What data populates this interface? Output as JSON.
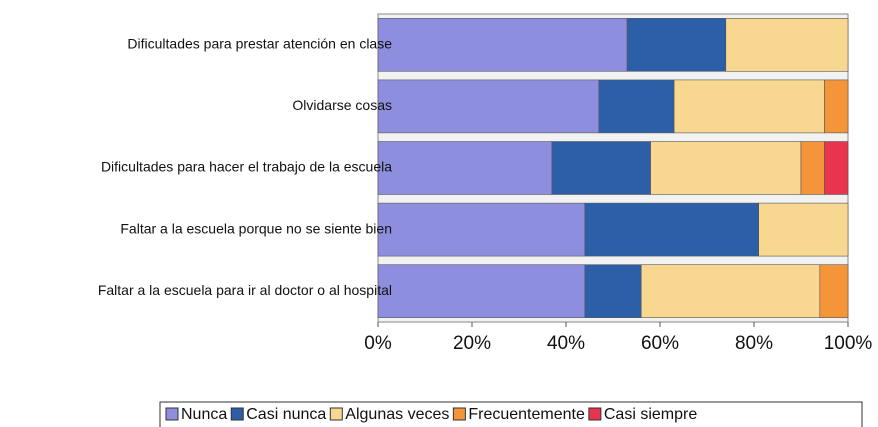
{
  "chart_data": {
    "type": "stacked_hbar",
    "categories": [
      "Dificultades para prestar atención en clase",
      "Olvidarse cosas",
      "Dificultades para hacer el trabajo de la escuela",
      "Faltar a la escuela porque no se siente bien",
      "Faltar a la escuela para ir al doctor o al hospital"
    ],
    "series": [
      {
        "name": "Nunca",
        "color": "#8e8ede",
        "values": [
          53,
          47,
          37,
          44,
          44
        ]
      },
      {
        "name": "Casi nunca",
        "color": "#2d5ea8",
        "values": [
          21,
          16,
          21,
          37,
          12
        ]
      },
      {
        "name": "Algunas veces",
        "color": "#f8d890",
        "values": [
          26,
          32,
          32,
          19,
          38
        ]
      },
      {
        "name": "Frecuentemente",
        "color": "#f4953a",
        "values": [
          0,
          5,
          5,
          0,
          6
        ]
      },
      {
        "name": "Casi siempre",
        "color": "#e8344f",
        "values": [
          0,
          0,
          5,
          0,
          0
        ]
      }
    ],
    "xlim": [
      0,
      100
    ],
    "xticks": [
      {
        "value": 0,
        "label": "0%"
      },
      {
        "value": 20,
        "label": "20%"
      },
      {
        "value": 40,
        "label": "40%"
      },
      {
        "value": 60,
        "label": "60%"
      },
      {
        "value": 80,
        "label": "80%"
      },
      {
        "value": 100,
        "label": "100%"
      }
    ],
    "legend": "bottom"
  }
}
